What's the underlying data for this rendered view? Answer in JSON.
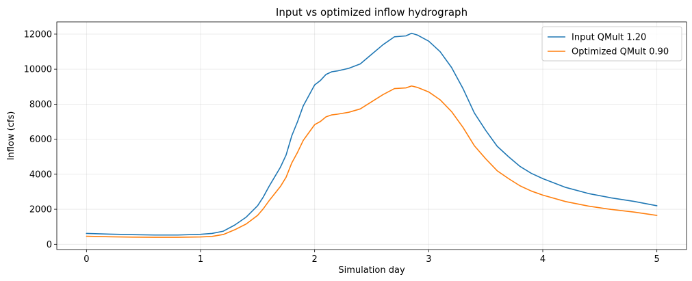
{
  "chart_data": {
    "type": "line",
    "title": "Input vs optimized inflow hydrograph",
    "xlabel": "Simulation day",
    "ylabel": "Inflow (cfs)",
    "xlim": [
      -0.26,
      5.26
    ],
    "ylim": [
      -300,
      12700
    ],
    "xticks": [
      0,
      1,
      2,
      3,
      4,
      5
    ],
    "xtick_labels": [
      "0",
      "1",
      "2",
      "3",
      "4",
      "5"
    ],
    "yticks": [
      0,
      2000,
      4000,
      6000,
      8000,
      10000,
      12000
    ],
    "ytick_labels": [
      "0",
      "2000",
      "4000",
      "6000",
      "8000",
      "10000",
      "12000"
    ],
    "grid": true,
    "legend_position": "top-right",
    "series": [
      {
        "name": "Input QMult 1.20",
        "color": "#1f77b4",
        "x": [
          0,
          0.2,
          0.4,
          0.6,
          0.8,
          1.0,
          1.1,
          1.2,
          1.3,
          1.4,
          1.5,
          1.55,
          1.6,
          1.65,
          1.7,
          1.75,
          1.8,
          1.85,
          1.9,
          1.95,
          2.0,
          2.05,
          2.1,
          2.15,
          2.2,
          2.3,
          2.4,
          2.5,
          2.6,
          2.7,
          2.8,
          2.85,
          2.9,
          3.0,
          3.1,
          3.2,
          3.3,
          3.4,
          3.5,
          3.6,
          3.7,
          3.8,
          3.9,
          4.0,
          4.2,
          4.4,
          4.6,
          4.8,
          5.0
        ],
        "y": [
          620,
          580,
          550,
          530,
          530,
          570,
          620,
          750,
          1100,
          1550,
          2200,
          2700,
          3300,
          3850,
          4400,
          5100,
          6200,
          7000,
          7900,
          8500,
          9100,
          9350,
          9700,
          9850,
          9900,
          10050,
          10300,
          10850,
          11400,
          11850,
          11900,
          12050,
          11950,
          11600,
          11000,
          10100,
          8900,
          7500,
          6500,
          5600,
          5000,
          4450,
          4050,
          3750,
          3250,
          2900,
          2650,
          2450,
          2200
        ]
      },
      {
        "name": "Optimized QMult 0.90",
        "color": "#ff7f0e",
        "x": [
          0,
          0.2,
          0.4,
          0.6,
          0.8,
          1.0,
          1.1,
          1.2,
          1.3,
          1.4,
          1.5,
          1.55,
          1.6,
          1.65,
          1.7,
          1.75,
          1.8,
          1.85,
          1.9,
          1.95,
          2.0,
          2.05,
          2.1,
          2.15,
          2.2,
          2.3,
          2.4,
          2.5,
          2.6,
          2.7,
          2.8,
          2.85,
          2.9,
          3.0,
          3.1,
          3.2,
          3.3,
          3.4,
          3.5,
          3.6,
          3.7,
          3.8,
          3.9,
          4.0,
          4.2,
          4.4,
          4.6,
          4.8,
          5.0
        ],
        "y": [
          460,
          430,
          410,
          400,
          400,
          420,
          450,
          560,
          830,
          1160,
          1650,
          2030,
          2480,
          2890,
          3300,
          3830,
          4650,
          5250,
          5930,
          6380,
          6830,
          7010,
          7280,
          7390,
          7430,
          7540,
          7730,
          8140,
          8550,
          8890,
          8930,
          9040,
          8960,
          8700,
          8250,
          7580,
          6680,
          5630,
          4880,
          4200,
          3750,
          3340,
          3040,
          2810,
          2440,
          2180,
          1990,
          1840,
          1650
        ]
      }
    ]
  }
}
